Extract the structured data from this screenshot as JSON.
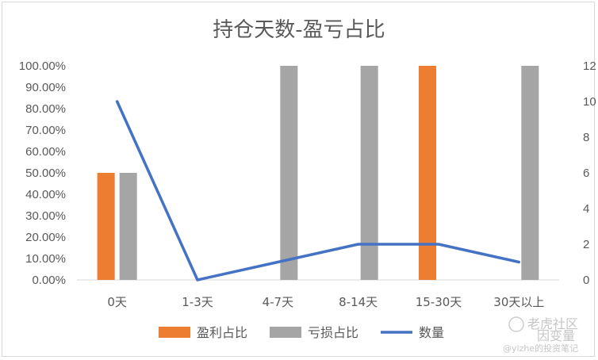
{
  "chart_data": {
    "type": "bar",
    "title": "持仓天数-盈亏占比",
    "categories": [
      "0天",
      "1-3天",
      "4-7天",
      "8-14天",
      "15-30天",
      "30天以上"
    ],
    "series": [
      {
        "name": "盈利占比",
        "kind": "bar",
        "axis": "left",
        "color": "#ED7D31",
        "values": [
          0.5,
          0,
          0,
          0,
          1.0,
          0
        ]
      },
      {
        "name": "亏损占比",
        "kind": "bar",
        "axis": "left",
        "color": "#A5A5A5",
        "values": [
          0.5,
          0,
          1.0,
          1.0,
          0,
          1.0
        ]
      },
      {
        "name": "数量",
        "kind": "line",
        "axis": "right",
        "color": "#4472C4",
        "values": [
          10,
          0,
          1,
          2,
          2,
          1
        ]
      }
    ],
    "y_left": {
      "ylim": [
        0,
        1
      ],
      "ticks": [
        "0.00%",
        "10.00%",
        "20.00%",
        "30.00%",
        "40.00%",
        "50.00%",
        "60.00%",
        "70.00%",
        "80.00%",
        "90.00%",
        "100.00%"
      ]
    },
    "y_right": {
      "ylim": [
        0,
        12
      ],
      "ticks": [
        "0",
        "2",
        "4",
        "6",
        "8",
        "10",
        "12"
      ]
    },
    "grid": false,
    "legend": "bottom"
  },
  "watermark": {
    "line1": "老虎社区",
    "line2": "因变量",
    "line3": "@yizhe的投资笔记"
  }
}
